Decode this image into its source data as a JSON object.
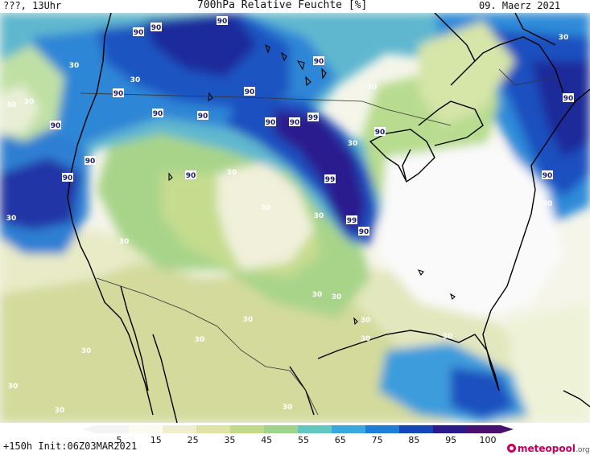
{
  "header": {
    "left": "???, 13Uhr",
    "title": "700hPa Relative Feuchte [%]",
    "date": "09. Maerz 2021"
  },
  "map": {
    "region": "North America",
    "labels": [
      {
        "text": "90",
        "kind": "high"
      },
      {
        "text": "90",
        "kind": "high"
      },
      {
        "text": "90",
        "kind": "high"
      },
      {
        "text": "90",
        "kind": "high"
      },
      {
        "text": "90",
        "kind": "high"
      },
      {
        "text": "90",
        "kind": "high"
      },
      {
        "text": "90",
        "kind": "high"
      },
      {
        "text": "90",
        "kind": "high"
      },
      {
        "text": "90",
        "kind": "high"
      },
      {
        "text": "90",
        "kind": "high"
      },
      {
        "text": "90",
        "kind": "high"
      },
      {
        "text": "90",
        "kind": "high"
      },
      {
        "text": "90",
        "kind": "high"
      },
      {
        "text": "90",
        "kind": "high"
      },
      {
        "text": "90",
        "kind": "high"
      },
      {
        "text": "90",
        "kind": "high"
      },
      {
        "text": "90",
        "kind": "high"
      },
      {
        "text": "90",
        "kind": "high"
      },
      {
        "text": "99",
        "kind": "high"
      },
      {
        "text": "99",
        "kind": "high"
      },
      {
        "text": "99",
        "kind": "high"
      },
      {
        "text": "30",
        "kind": "low"
      },
      {
        "text": "30",
        "kind": "low"
      },
      {
        "text": "30",
        "kind": "low"
      },
      {
        "text": "30",
        "kind": "low"
      },
      {
        "text": "30",
        "kind": "low"
      },
      {
        "text": "30",
        "kind": "low"
      },
      {
        "text": "30",
        "kind": "low"
      },
      {
        "text": "30",
        "kind": "low"
      },
      {
        "text": "30",
        "kind": "low"
      },
      {
        "text": "30",
        "kind": "low"
      },
      {
        "text": "30",
        "kind": "low"
      },
      {
        "text": "30",
        "kind": "low"
      },
      {
        "text": "30",
        "kind": "low"
      },
      {
        "text": "30",
        "kind": "low"
      },
      {
        "text": "30",
        "kind": "low"
      },
      {
        "text": "30",
        "kind": "low"
      },
      {
        "text": "30",
        "kind": "low"
      },
      {
        "text": "30",
        "kind": "low"
      },
      {
        "text": "30",
        "kind": "low"
      },
      {
        "text": "30",
        "kind": "low"
      },
      {
        "text": "30",
        "kind": "low"
      },
      {
        "text": "30",
        "kind": "low"
      },
      {
        "text": "30",
        "kind": "low"
      },
      {
        "text": "30",
        "kind": "low"
      }
    ]
  },
  "legend": {
    "ticks": [
      "5",
      "15",
      "25",
      "35",
      "45",
      "55",
      "65",
      "75",
      "85",
      "95",
      "100"
    ],
    "colors": [
      "#f4f4f4",
      "#fbfbf2",
      "#efefcf",
      "#dfe3a6",
      "#c3d98a",
      "#9fd38c",
      "#63c7c0",
      "#3aa7dd",
      "#1d7ed6",
      "#1446b8",
      "#2a1a8a",
      "#4a1070"
    ]
  },
  "footer": {
    "left": "+150h Init:06Z03MAR2021",
    "brand_main": "meteopool",
    "brand_tld": ".org"
  },
  "colors": {
    "land_base": "#f7f7ee",
    "yellow_green": "#d6dc9e",
    "light_green": "#bfdc8c",
    "teal": "#6cc7c0",
    "mid_blue": "#3b95dd",
    "deep_blue": "#1b4fc0",
    "navy": "#1a2490",
    "purple": "#3a1478"
  }
}
